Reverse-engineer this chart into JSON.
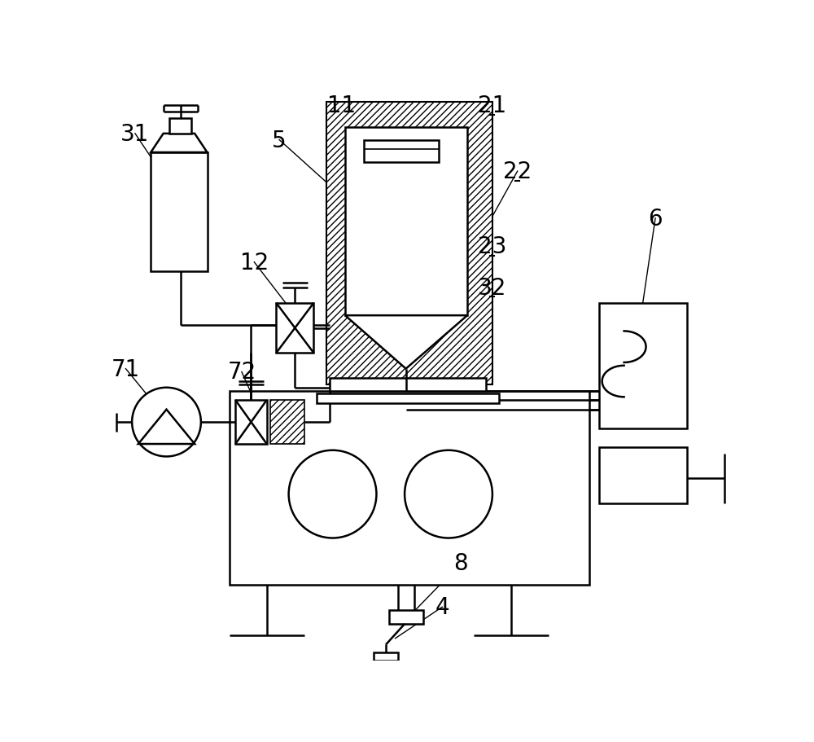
{
  "bg_color": "#ffffff",
  "lc": "#000000",
  "lw": 1.8,
  "label_fontsize": 20
}
